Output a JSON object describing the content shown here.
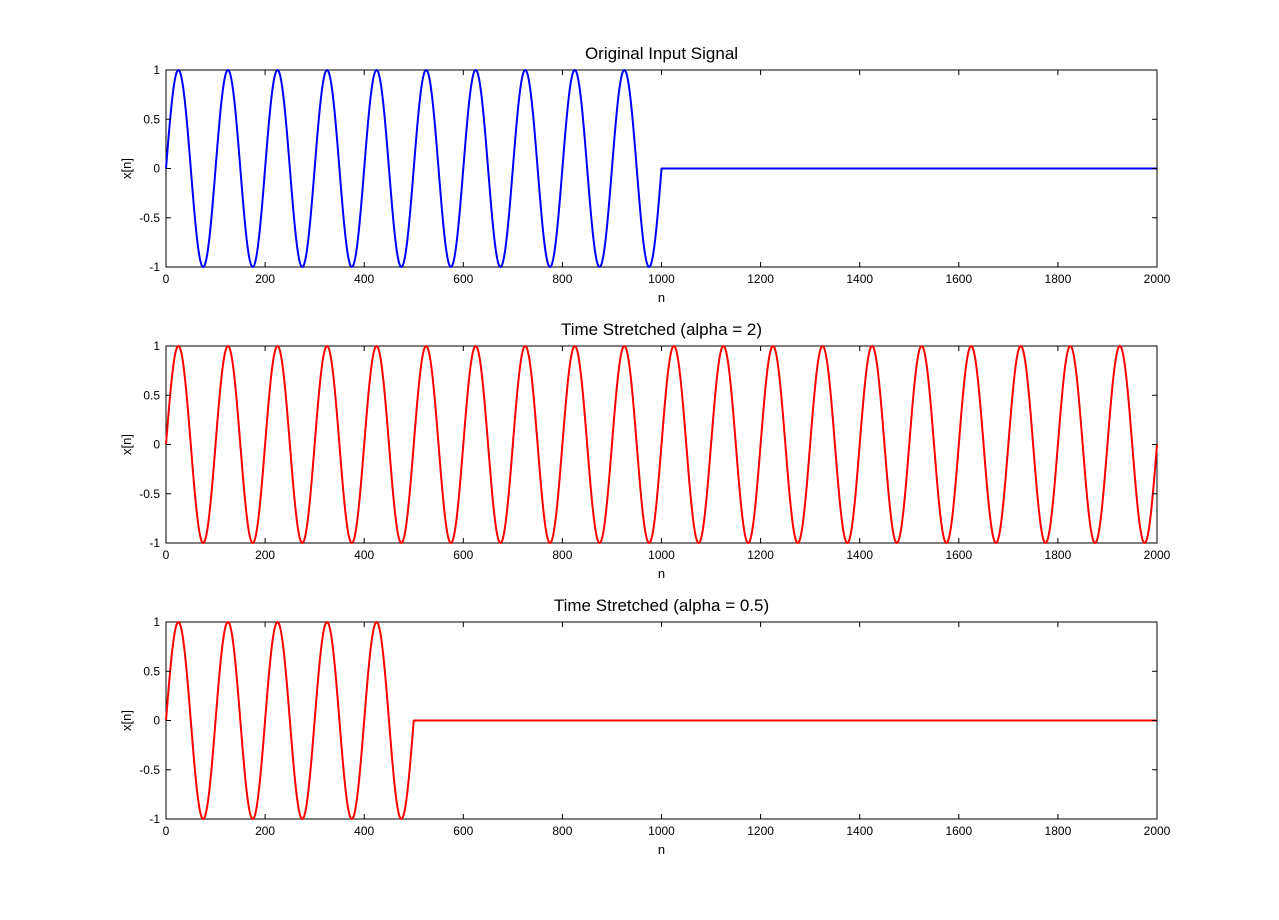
{
  "chart_data": [
    {
      "type": "line",
      "title": "Original Input Signal",
      "xlabel": "n",
      "ylabel": "x[n]",
      "xlim": [
        0,
        2000
      ],
      "ylim": [
        -1,
        1
      ],
      "grid": false,
      "x_ticks": [
        0,
        200,
        400,
        600,
        800,
        1000,
        1200,
        1400,
        1600,
        1800,
        2000
      ],
      "x_tick_labels": [
        "0",
        "200",
        "400",
        "600",
        "800",
        "1000",
        "1200",
        "1400",
        "1600",
        "1800",
        "2000"
      ],
      "y_ticks": [
        -1,
        -0.5,
        0,
        0.5,
        1
      ],
      "y_tick_labels": [
        "-1",
        "-0.5",
        "0",
        "0.5",
        "1"
      ],
      "series": [
        {
          "color": "#0000ff",
          "description": "sinusoid x[n] = sin(2*pi*n/100) for n < 1000, then 0 up to n = 2000",
          "period": 100,
          "amplitude": 1,
          "signal_end": 1000,
          "x_max": 2000
        }
      ]
    },
    {
      "type": "line",
      "title": "Time Stretched (alpha = 2)",
      "xlabel": "n",
      "ylabel": "x[n]",
      "xlim": [
        0,
        2000
      ],
      "ylim": [
        -1,
        1
      ],
      "grid": false,
      "x_ticks": [
        0,
        200,
        400,
        600,
        800,
        1000,
        1200,
        1400,
        1600,
        1800,
        2000
      ],
      "x_tick_labels": [
        "0",
        "200",
        "400",
        "600",
        "800",
        "1000",
        "1200",
        "1400",
        "1600",
        "1800",
        "2000"
      ],
      "y_ticks": [
        -1,
        -0.5,
        0,
        0.5,
        1
      ],
      "y_tick_labels": [
        "-1",
        "-0.5",
        "0",
        "0.5",
        "1"
      ],
      "series": [
        {
          "color": "#ff0000",
          "description": "sinusoid sin(2*pi*n/100) over the whole range 0 to 2000",
          "period": 100,
          "amplitude": 1,
          "signal_end": 2000,
          "x_max": 2000
        }
      ]
    },
    {
      "type": "line",
      "title": "Time Stretched (alpha = 0.5)",
      "xlabel": "n",
      "ylabel": "x[n]",
      "xlim": [
        0,
        2000
      ],
      "ylim": [
        -1,
        1
      ],
      "grid": false,
      "x_ticks": [
        0,
        200,
        400,
        600,
        800,
        1000,
        1200,
        1400,
        1600,
        1800,
        2000
      ],
      "x_tick_labels": [
        "0",
        "200",
        "400",
        "600",
        "800",
        "1000",
        "1200",
        "1400",
        "1600",
        "1800",
        "2000"
      ],
      "y_ticks": [
        -1,
        -0.5,
        0,
        0.5,
        1
      ],
      "y_tick_labels": [
        "-1",
        "-0.5",
        "0",
        "0.5",
        "1"
      ],
      "series": [
        {
          "color": "#ff0000",
          "description": "sinusoid sin(2*pi*n/100) for n < 500, then 0 up to n = 2000",
          "period": 100,
          "amplitude": 1,
          "signal_end": 500,
          "x_max": 2000
        }
      ]
    }
  ]
}
